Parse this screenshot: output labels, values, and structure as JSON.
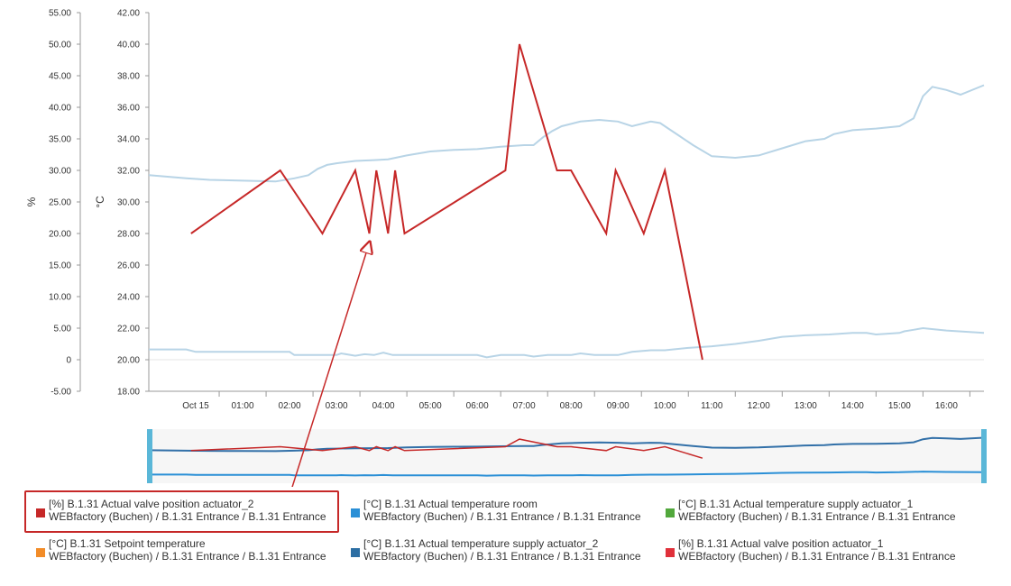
{
  "chart_data": {
    "type": "line",
    "axes": {
      "left_percent": {
        "title": "%",
        "range": [
          -5,
          55
        ],
        "ticks": [
          "55.00",
          "50.00",
          "45.00",
          "40.00",
          "35.00",
          "30.00",
          "25.00",
          "20.00",
          "15.00",
          "10.00",
          "5.00",
          "0",
          "-5.00"
        ]
      },
      "left_celsius": {
        "title": "°C",
        "range": [
          18,
          42
        ],
        "ticks": [
          "42.00",
          "40.00",
          "38.00",
          "36.00",
          "34.00",
          "32.00",
          "30.00",
          "28.00",
          "26.00",
          "24.00",
          "22.00",
          "20.00",
          "18.00"
        ]
      },
      "x": {
        "range_hours": [
          -1,
          16.8
        ],
        "ticks": [
          {
            "h": 0,
            "label": "Oct 15"
          },
          {
            "h": 1,
            "label": "01:00"
          },
          {
            "h": 2,
            "label": "02:00"
          },
          {
            "h": 3,
            "label": "03:00"
          },
          {
            "h": 4,
            "label": "04:00"
          },
          {
            "h": 5,
            "label": "05:00"
          },
          {
            "h": 6,
            "label": "06:00"
          },
          {
            "h": 7,
            "label": "07:00"
          },
          {
            "h": 8,
            "label": "08:00"
          },
          {
            "h": 9,
            "label": "09:00"
          },
          {
            "h": 10,
            "label": "10:00"
          },
          {
            "h": 11,
            "label": "11:00"
          },
          {
            "h": 12,
            "label": "12:00"
          },
          {
            "h": 13,
            "label": "13:00"
          },
          {
            "h": 14,
            "label": "14:00"
          },
          {
            "h": 15,
            "label": "15:00"
          },
          {
            "h": 16,
            "label": "16:00"
          }
        ]
      }
    },
    "series": [
      {
        "name": "[°C] B.1.31 Actual temperature supply actuator_2",
        "axis": "left_celsius",
        "color": "#b8d4e6",
        "x": [
          -1,
          -0.6,
          -0.2,
          0.3,
          1,
          1.7,
          2.1,
          2.4,
          2.6,
          2.8,
          3,
          3.4,
          3.8,
          4.1,
          4.5,
          5,
          5.5,
          6,
          6.5,
          7,
          7.2,
          7.4,
          7.6,
          7.8,
          8.2,
          8.6,
          9,
          9.3,
          9.7,
          9.9,
          10.1,
          10.3,
          10.6,
          11,
          11.5,
          12,
          12.5,
          13,
          13.4,
          13.6,
          14,
          14.5,
          15,
          15.3,
          15.5,
          15.7,
          16,
          16.3,
          16.8
        ],
        "y": [
          31.7,
          31.6,
          31.5,
          31.4,
          31.35,
          31.3,
          31.5,
          31.7,
          32.1,
          32.35,
          32.45,
          32.6,
          32.65,
          32.7,
          32.95,
          33.2,
          33.3,
          33.35,
          33.5,
          33.6,
          33.6,
          34.1,
          34.5,
          34.8,
          35.1,
          35.2,
          35.1,
          34.8,
          35.1,
          35.0,
          34.6,
          34.2,
          33.6,
          32.9,
          32.8,
          32.95,
          33.4,
          33.85,
          34.0,
          34.3,
          34.55,
          34.65,
          34.8,
          35.3,
          36.7,
          37.3,
          37.1,
          36.8,
          37.4
        ]
      },
      {
        "name": "[°C] B.1.31 Actual temperature room",
        "axis": "left_celsius",
        "color": "#b8d4e6",
        "x": [
          -1,
          -0.2,
          0,
          1,
          2,
          2.1,
          3,
          3.1,
          3.4,
          3.6,
          3.8,
          4,
          4.2,
          4.5,
          5,
          6,
          6.2,
          6.5,
          7,
          7.2,
          7.5,
          8,
          8.2,
          8.5,
          9,
          9.3,
          9.7,
          10,
          10.5,
          11,
          11.5,
          12,
          12.5,
          13,
          13.5,
          14,
          14.3,
          14.5,
          15,
          15.1,
          15.3,
          15.5,
          16,
          16.8
        ],
        "y": [
          20.65,
          20.65,
          20.5,
          20.5,
          20.5,
          20.3,
          20.3,
          20.4,
          20.25,
          20.35,
          20.3,
          20.45,
          20.3,
          20.3,
          20.3,
          20.3,
          20.15,
          20.3,
          20.3,
          20.2,
          20.3,
          20.3,
          20.4,
          20.3,
          20.3,
          20.5,
          20.6,
          20.6,
          20.75,
          20.85,
          21.0,
          21.2,
          21.45,
          21.55,
          21.6,
          21.7,
          21.7,
          21.6,
          21.7,
          21.8,
          21.9,
          22.0,
          21.85,
          21.7
        ]
      },
      {
        "name": "[%] B.1.31 Actual valve position actuator_2",
        "axis": "left_percent",
        "color": "#c62828",
        "x": [
          -0.1,
          1.8,
          2.7,
          3.4,
          3.7,
          3.85,
          4.1,
          4.25,
          4.45,
          6.6,
          6.9,
          7.7,
          8,
          8.75,
          8.95,
          9.55,
          10,
          10.8
        ],
        "y": [
          20,
          30,
          20,
          30,
          20,
          30,
          20,
          30,
          20,
          30,
          50,
          30,
          30,
          20,
          30,
          20,
          30,
          0
        ]
      }
    ],
    "annotations": [
      {
        "type": "arrow",
        "from": {
          "h": 1.6,
          "pct": -9.5
        },
        "to": {
          "h": 3.7,
          "pct": 18.5
        },
        "color": "#c62828"
      }
    ]
  },
  "legend": [
    {
      "title": "[%] B.1.31 Actual valve position actuator_2",
      "path": "WEBfactory (Buchen) / B.1.31 Entrance / B.1.31 Entrance",
      "color": "#c62828"
    },
    {
      "title": "[°C] B.1.31 Actual temperature room",
      "path": "WEBfactory (Buchen) / B.1.31 Entrance / B.1.31 Entrance",
      "color": "#2a8fd6"
    },
    {
      "title": "[°C] B.1.31 Actual temperature supply actuator_1",
      "path": "WEBfactory (Buchen) / B.1.31 Entrance / B.1.31 Entrance",
      "color": "#52a83c"
    },
    {
      "title": "[°C] B.1.31 Setpoint temperature",
      "path": "WEBfactory (Buchen) / B.1.31 Entrance / B.1.31 Entrance",
      "color": "#f28c28"
    },
    {
      "title": "[°C] B.1.31 Actual temperature supply actuator_2",
      "path": "WEBfactory (Buchen) / B.1.31 Entrance / B.1.31 Entrance",
      "color": "#2c6ea3"
    },
    {
      "title": "[%] B.1.31 Actual valve position actuator_1",
      "path": "WEBfactory (Buchen) / B.1.31 Entrance / B.1.31 Entrance",
      "color": "#e0303a"
    }
  ],
  "colors": {
    "navigator_bg": "#f6f6f6",
    "navigator_handle": "#5ab7d8",
    "navigator_line_dark": "#3270a8",
    "navigator_line_room": "#2a8fd6",
    "navigator_line_valve": "#c62828",
    "gridline": "#e6e6e6"
  }
}
